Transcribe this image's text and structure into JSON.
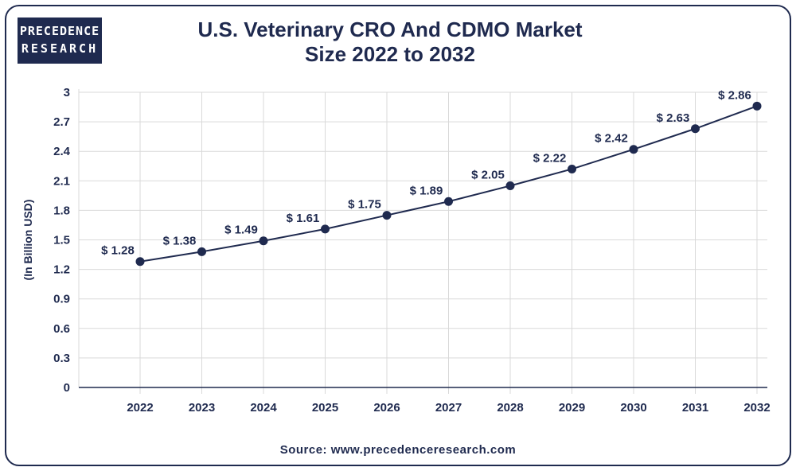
{
  "logo": {
    "line1": "PRECEDENCE",
    "line2": "RESEARCH"
  },
  "title_line1": "U.S. Veterinary CRO And CDMO Market",
  "title_line2": "Size 2022 to 2032",
  "source": "Source: www.precedenceresearch.com",
  "colors": {
    "primary": "#1f2a4f",
    "grid": "#d9d9d9",
    "marker": "#1f2a4f"
  },
  "chart_data": {
    "type": "line",
    "title": "U.S. Veterinary CRO And CDMO Market Size 2022 to 2032",
    "xlabel": "",
    "ylabel": "(In Billion USD)",
    "categories": [
      "2022",
      "2023",
      "2024",
      "2025",
      "2026",
      "2027",
      "2028",
      "2029",
      "2030",
      "2031",
      "2032"
    ],
    "values": [
      1.28,
      1.38,
      1.49,
      1.61,
      1.75,
      1.89,
      2.05,
      2.22,
      2.42,
      2.63,
      2.86
    ],
    "data_labels": [
      "$ 1.28",
      "$ 1.38",
      "$ 1.49",
      "$ 1.61",
      "$ 1.75",
      "$ 1.89",
      "$ 2.05",
      "$ 2.22",
      "$ 2.42",
      "$ 2.63",
      "$ 2.86"
    ],
    "yticks": [
      "0",
      "0.3",
      "0.6",
      "0.9",
      "1.2",
      "1.5",
      "1.8",
      "2.1",
      "2.4",
      "2.7",
      "3"
    ],
    "ylim": [
      0,
      3
    ],
    "grid": true
  }
}
